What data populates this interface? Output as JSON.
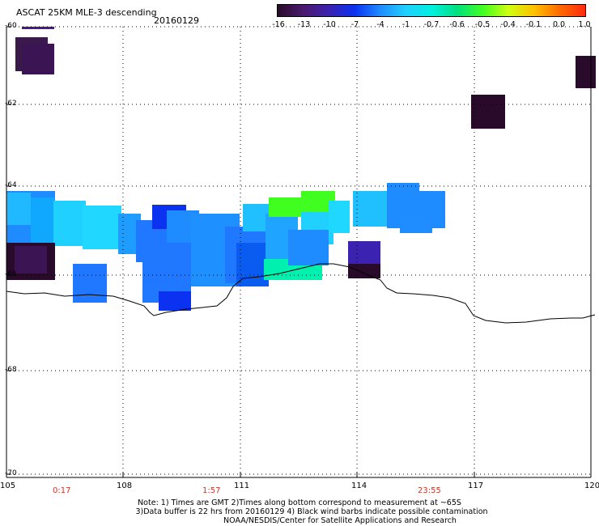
{
  "header": {
    "title": "ASCAT 25KM MLE-3 descending",
    "date": "20160129"
  },
  "colorbar": {
    "labels": [
      "-16",
      "-13",
      "-10",
      "-7",
      "-4",
      "-1",
      "-0.7",
      "-0.6",
      "-0.5",
      "-0.4",
      "-0.1",
      "0.0",
      "1.0"
    ],
    "colors": [
      "#2a0a2a",
      "#4b1a6e",
      "#3b22b0",
      "#0a32f0",
      "#1f8cff",
      "#20d0ff",
      "#00f0e0",
      "#00e080",
      "#40ff20",
      "#d0ff10",
      "#ffc000",
      "#ff6a00",
      "#ff2a10"
    ]
  },
  "axes": {
    "lat_labels": [
      "-60",
      "-62",
      "-64",
      "-66",
      "-68",
      "-70"
    ],
    "lon_labels": [
      "105",
      "108",
      "111",
      "114",
      "117",
      "120"
    ],
    "time_labels": [
      "0:17",
      "1:57",
      "23:55"
    ]
  },
  "notes": {
    "line1": "Note: 1) Times are GMT 2)Times along bottom correspond to measurement at ~65S",
    "line2": "3)Data buffer is 22 hrs from 20160129 4) Black wind barbs indicate possible contamination",
    "line3": "NOAA/NESDIS/Center for Satellite Applications and Research"
  },
  "colors": {
    "coastline": "#000000",
    "grid": "#000000",
    "time_label": "#c0392b"
  }
}
